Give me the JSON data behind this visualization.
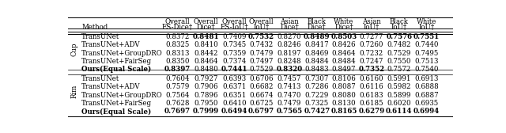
{
  "col_headers_line1": [
    "Overall",
    "Overall",
    "Overall",
    "Overall",
    "Asian",
    "Black",
    "White",
    "Asian",
    "Black",
    "White"
  ],
  "col_headers_line2": [
    "ES-Dice†",
    "Dice†",
    "ES-IoU†",
    "IoU†",
    "Dice†",
    "Dice†",
    "Dice†",
    "IoU†",
    "IoU†",
    "IoU†"
  ],
  "groups": [
    {
      "label": "Cup",
      "rows": [
        {
          "method": "TransUNet",
          "values": [
            "0.8372",
            "0.8481",
            "0.7409",
            "0.7532",
            "0.8270",
            "0.8489",
            "0.8503",
            "0.7277",
            "0.7576",
            "0.7551"
          ],
          "bold": [
            false,
            true,
            false,
            true,
            false,
            true,
            true,
            false,
            true,
            true
          ]
        },
        {
          "method": "TransUNet+ADV",
          "values": [
            "0.8325",
            "0.8410",
            "0.7345",
            "0.7432",
            "0.8246",
            "0.8417",
            "0.8426",
            "0.7260",
            "0.7482",
            "0.7440"
          ],
          "bold": [
            false,
            false,
            false,
            false,
            false,
            false,
            false,
            false,
            false,
            false
          ]
        },
        {
          "method": "TransUNet+GroupDRO",
          "values": [
            "0.8313",
            "0.8442",
            "0.7359",
            "0.7479",
            "0.8197",
            "0.8469",
            "0.8464",
            "0.7232",
            "0.7529",
            "0.7495"
          ],
          "bold": [
            false,
            false,
            false,
            false,
            false,
            false,
            false,
            false,
            false,
            false
          ]
        },
        {
          "method": "TransUNet+FairSeg",
          "values": [
            "0.8350",
            "0.8464",
            "0.7374",
            "0.7497",
            "0.8248",
            "0.8484",
            "0.8484",
            "0.7247",
            "0.7550",
            "0.7513"
          ],
          "bold": [
            false,
            false,
            false,
            false,
            false,
            false,
            false,
            false,
            false,
            false
          ]
        },
        {
          "method": "Ours(Equal Scale)",
          "values": [
            "0.8397",
            "0.8480",
            "0.7441",
            "0.7529",
            "0.8320",
            "0.8483",
            "0.8497",
            "0.7352",
            "0.7572",
            "0.7540"
          ],
          "bold": [
            true,
            false,
            true,
            false,
            true,
            false,
            false,
            true,
            false,
            false
          ],
          "is_ours": true
        }
      ]
    },
    {
      "label": "Rim",
      "rows": [
        {
          "method": "TransUNet",
          "values": [
            "0.7604",
            "0.7927",
            "0.6393",
            "0.6706",
            "0.7457",
            "0.7307",
            "0.8106",
            "0.6160",
            "0.5991",
            "0.6913"
          ],
          "bold": [
            false,
            false,
            false,
            false,
            false,
            false,
            false,
            false,
            false,
            false
          ]
        },
        {
          "method": "TransUNet+ADV",
          "values": [
            "0.7579",
            "0.7906",
            "0.6371",
            "0.6682",
            "0.7413",
            "0.7286",
            "0.8087",
            "0.6116",
            "0.5982",
            "0.6888"
          ],
          "bold": [
            false,
            false,
            false,
            false,
            false,
            false,
            false,
            false,
            false,
            false
          ]
        },
        {
          "method": "TransUNet+GroupDRO",
          "values": [
            "0.7564",
            "0.7896",
            "0.6351",
            "0.6674",
            "0.7470",
            "0.7229",
            "0.8080",
            "0.6183",
            "0.5899",
            "0.6887"
          ],
          "bold": [
            false,
            false,
            false,
            false,
            false,
            false,
            false,
            false,
            false,
            false
          ]
        },
        {
          "method": "TransUNet+FairSeg",
          "values": [
            "0.7628",
            "0.7950",
            "0.6410",
            "0.6725",
            "0.7479",
            "0.7325",
            "0.8130",
            "0.6185",
            "0.6020",
            "0.6935"
          ],
          "bold": [
            false,
            false,
            false,
            false,
            false,
            false,
            false,
            false,
            false,
            false
          ]
        },
        {
          "method": "Ours(Equal Scale)",
          "values": [
            "0.7697",
            "0.7999",
            "0.6494",
            "0.6797",
            "0.7565",
            "0.7427",
            "0.8165",
            "0.6279",
            "0.6114",
            "0.6994"
          ],
          "bold": [
            true,
            true,
            true,
            true,
            true,
            true,
            true,
            true,
            true,
            true
          ],
          "is_ours": true
        }
      ]
    }
  ],
  "fs": 6.2,
  "bg_color": "#ffffff"
}
